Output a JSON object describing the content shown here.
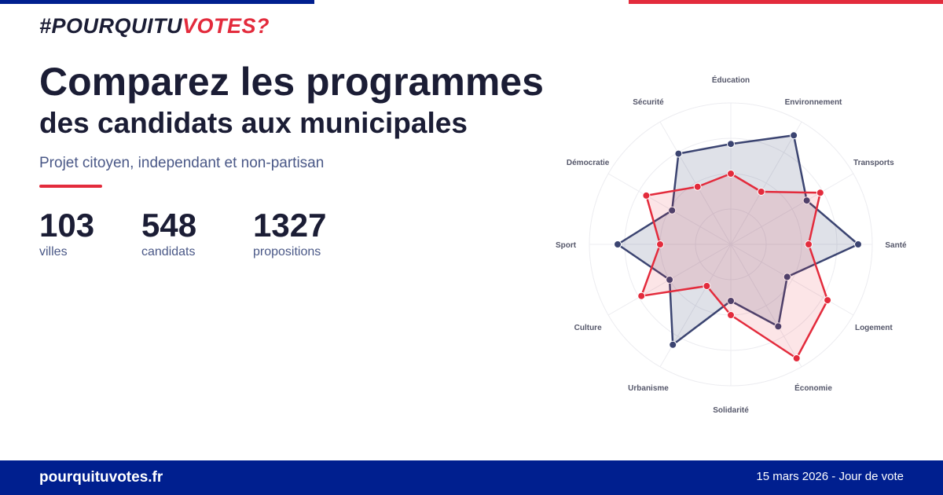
{
  "brand": {
    "part1": "#POURQUITU",
    "part2": "VOTES?"
  },
  "headline": {
    "line1": "Comparez les programmes",
    "line2": "des candidats aux municipales",
    "subtitle": "Projet citoyen, independant et non-partisan"
  },
  "stats": [
    {
      "value": "103",
      "label": "villes"
    },
    {
      "value": "548",
      "label": "candidats"
    },
    {
      "value": "1327",
      "label": "propositions"
    }
  ],
  "colors": {
    "navy": "#3b4471",
    "red": "#e32b3c",
    "brand_blue": "#001f8f"
  },
  "chart_data": {
    "type": "radar",
    "axes": [
      "Éducation",
      "Environnement",
      "Transports",
      "Santé",
      "Logement",
      "Économie",
      "Solidarité",
      "Urbanisme",
      "Culture",
      "Sport",
      "Démocratie",
      "Sécurité"
    ],
    "rmax": 1,
    "series": [
      {
        "values": [
          0.71,
          0.89,
          0.62,
          0.9,
          0.46,
          0.67,
          0.4,
          0.82,
          0.5,
          0.8,
          0.48,
          0.74
        ]
      },
      {
        "values": [
          0.5,
          0.43,
          0.73,
          0.55,
          0.79,
          0.93,
          0.5,
          0.34,
          0.73,
          0.5,
          0.69,
          0.47
        ]
      }
    ]
  },
  "footer": {
    "site": "pourquituvotes.fr",
    "date": "15 mars 2026 - Jour de vote"
  }
}
